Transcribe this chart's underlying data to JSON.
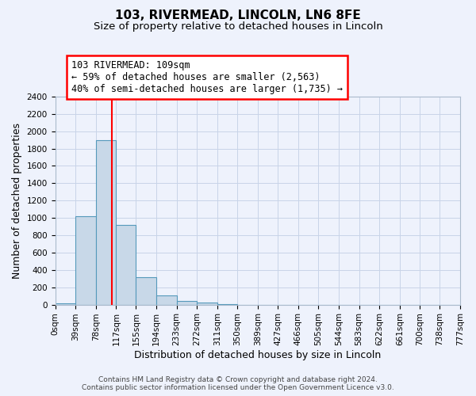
{
  "title": "103, RIVERMEAD, LINCOLN, LN6 8FE",
  "subtitle": "Size of property relative to detached houses in Lincoln",
  "xlabel": "Distribution of detached houses by size in Lincoln",
  "ylabel": "Number of detached properties",
  "bin_edges": [
    0,
    39,
    78,
    117,
    155,
    194,
    233,
    272,
    311,
    350,
    389,
    427,
    466,
    505,
    544,
    583,
    622,
    661,
    700,
    738,
    777
  ],
  "bin_labels": [
    "0sqm",
    "39sqm",
    "78sqm",
    "117sqm",
    "155sqm",
    "194sqm",
    "233sqm",
    "272sqm",
    "311sqm",
    "350sqm",
    "389sqm",
    "427sqm",
    "466sqm",
    "505sqm",
    "544sqm",
    "583sqm",
    "622sqm",
    "661sqm",
    "700sqm",
    "738sqm",
    "777sqm"
  ],
  "counts": [
    15,
    1020,
    1900,
    920,
    315,
    105,
    45,
    20,
    5,
    0,
    0,
    0,
    0,
    0,
    0,
    0,
    0,
    0,
    0,
    0
  ],
  "bar_color": "#c8d8e8",
  "bar_edge_color": "#5599bb",
  "bar_edge_width": 0.8,
  "grid_color": "#c8d4e8",
  "background_color": "#eef2fc",
  "vline_x": 109,
  "vline_color": "red",
  "vline_lw": 1.5,
  "annotation_title": "103 RIVERMEAD: 109sqm",
  "annotation_line1": "← 59% of detached houses are smaller (2,563)",
  "annotation_line2": "40% of semi-detached houses are larger (1,735) →",
  "annotation_box_color": "white",
  "annotation_border_color": "red",
  "ylim": [
    0,
    2400
  ],
  "yticks": [
    0,
    200,
    400,
    600,
    800,
    1000,
    1200,
    1400,
    1600,
    1800,
    2000,
    2200,
    2400
  ],
  "footer1": "Contains HM Land Registry data © Crown copyright and database right 2024.",
  "footer2": "Contains public sector information licensed under the Open Government Licence v3.0.",
  "title_fontsize": 11,
  "subtitle_fontsize": 9.5,
  "axis_label_fontsize": 9,
  "tick_fontsize": 7.5,
  "annotation_fontsize": 8.5,
  "footer_fontsize": 6.5
}
